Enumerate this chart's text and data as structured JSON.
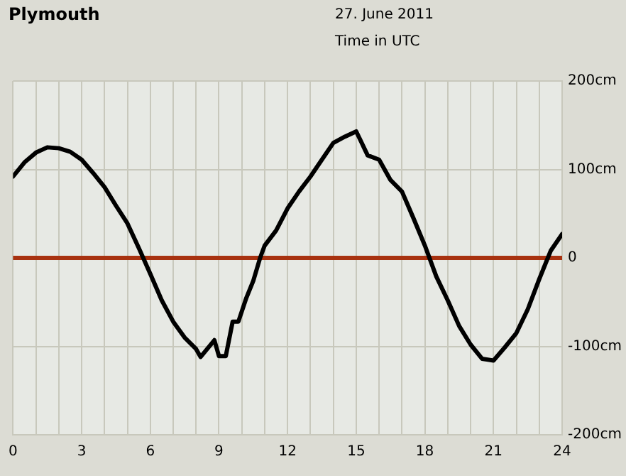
{
  "chart_data": {
    "type": "line",
    "title": "Plymouth",
    "subtitle": "27. June 2011",
    "xlabel": "Time in UTC",
    "x": [
      0,
      0.5,
      1,
      1.5,
      2,
      2.5,
      3,
      3.5,
      4,
      4.5,
      5,
      5.5,
      6,
      6.5,
      7,
      7.5,
      8,
      8.2,
      8.8,
      9,
      9.3,
      9.6,
      9.85,
      10.2,
      10.5,
      10.8,
      11,
      11.5,
      12,
      12.5,
      13,
      13.5,
      14,
      14.5,
      15,
      15.5,
      16,
      16.5,
      17,
      17.5,
      18,
      18.5,
      19,
      19.5,
      20,
      20.5,
      21,
      21.5,
      22,
      22.5,
      23,
      23.5,
      24
    ],
    "series": [
      {
        "color": "#000000",
        "values": [
          92,
          108,
          119,
          125,
          124,
          120,
          111,
          96,
          80,
          59,
          39,
          11,
          -18,
          -48,
          -72,
          -90,
          -103,
          -112,
          -93,
          -111,
          -111,
          -72,
          -72,
          -45,
          -26,
          0,
          14,
          31,
          56,
          75,
          92,
          111,
          130,
          137,
          143,
          116,
          111,
          88,
          75,
          45,
          14,
          -21,
          -48,
          -77,
          -98,
          -114,
          -116,
          -101,
          -85,
          -58,
          -24,
          8,
          27
        ]
      }
    ],
    "xlim": [
      0,
      24
    ],
    "xticks": [
      0,
      {
        "value": 1,
        "label": null
      },
      {
        "value": 2,
        "label": null
      },
      3,
      {
        "value": 4,
        "label": null
      },
      {
        "value": 5,
        "label": null
      },
      6,
      {
        "value": 7,
        "label": null
      },
      {
        "value": 8,
        "label": null
      },
      9,
      {
        "value": 10,
        "label": null
      },
      {
        "value": 11,
        "label": null
      },
      12,
      {
        "value": 13,
        "label": null
      },
      {
        "value": 14,
        "label": null
      },
      15,
      {
        "value": 16,
        "label": null
      },
      {
        "value": 17,
        "label": null
      },
      18,
      {
        "value": 19,
        "label": null
      },
      {
        "value": 20,
        "label": null
      },
      21,
      {
        "value": 22,
        "label": null
      },
      {
        "value": 23,
        "label": null
      },
      24
    ],
    "ylim": [
      -200,
      200
    ],
    "yticks": [
      {
        "value": 200,
        "label": "200cm"
      },
      {
        "value": 100,
        "label": "100cm"
      },
      0,
      {
        "value": -100,
        "label": "-100cm"
      },
      {
        "value": -200,
        "label": "-200cm"
      }
    ],
    "ref_lines": [
      {
        "axis": "y",
        "value": 0,
        "color": "#a83210"
      }
    ],
    "grid": true,
    "legend": false,
    "marker": "none",
    "line_style": "solid"
  }
}
